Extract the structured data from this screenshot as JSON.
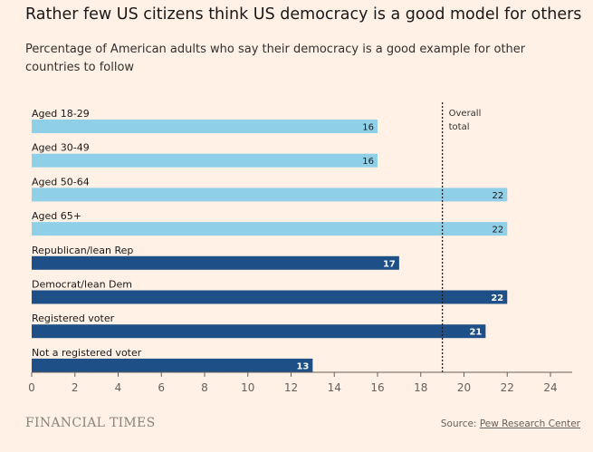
{
  "header": {
    "title": "Rather few US citizens think US democracy is a good model for others",
    "subtitle": "Percentage of American adults who say their democracy is a good example for other countries to follow"
  },
  "footer": {
    "brand": "FINANCIAL TIMES",
    "source_label": "Source:",
    "source_name": "Pew Research Center"
  },
  "colors": {
    "background": "#fff1e5",
    "light_bar": "#8fd0e8",
    "dark_bar": "#1e4f86",
    "axis": "#66605c"
  },
  "chart_data": {
    "type": "bar",
    "orientation": "horizontal",
    "title": "Rather few US citizens think US democracy is a good model for others",
    "subtitle": "Percentage of American adults who say their democracy is a good example for other countries to follow",
    "categories": [
      "Aged 18-29",
      "Aged 30-49",
      "Aged 50-64",
      "Aged 65+",
      "Republican/lean Rep",
      "Democrat/lean Dem",
      "Registered voter",
      "Not a registered voter"
    ],
    "values": [
      16,
      16,
      22,
      22,
      17,
      22,
      21,
      13
    ],
    "bar_groups": [
      "age",
      "age",
      "age",
      "age",
      "other",
      "other",
      "other",
      "other"
    ],
    "xlim": [
      0,
      24
    ],
    "xticks": [
      0,
      2,
      4,
      6,
      8,
      10,
      12,
      14,
      16,
      18,
      20,
      22,
      24
    ],
    "reference_line": {
      "value": 19,
      "label_line1": "Overall",
      "label_line2": "total"
    },
    "grid": false
  }
}
